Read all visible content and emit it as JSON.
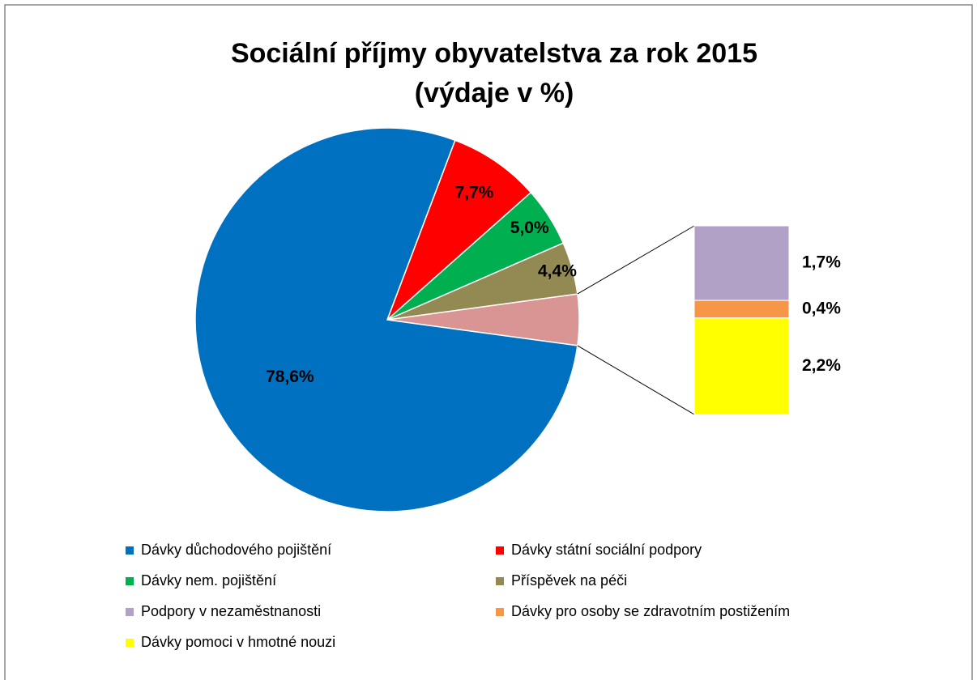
{
  "chart_data": {
    "type": "pie-of-bar",
    "title": [
      "Sociální příjmy obyvatelstva za rok 2015",
      "(výdaje v %)"
    ],
    "categories": [
      "Dávky důchodového pojištění",
      "Dávky státní sociální podpory",
      "Dávky nem. pojištění",
      "Příspěvek na péči",
      "Podpory v nezaměstnanosti",
      "Dávky pro osoby se zdravotním postižením",
      "Dávky pomoci v hmotné nouzi"
    ],
    "values": [
      78.6,
      7.7,
      5.0,
      4.4,
      1.7,
      0.4,
      2.2
    ],
    "value_labels": [
      "78,6%",
      "7,7%",
      "5,0%",
      "4,4%",
      "1,7%",
      "0,4%",
      "2,2%"
    ],
    "colors": [
      "#0070c0",
      "#ff0000",
      "#00b050",
      "#938953",
      "#b2a1c7",
      "#f79646",
      "#ffff00"
    ],
    "secondary_count": 3,
    "other_color": "#d99594",
    "legend": "bottom"
  }
}
